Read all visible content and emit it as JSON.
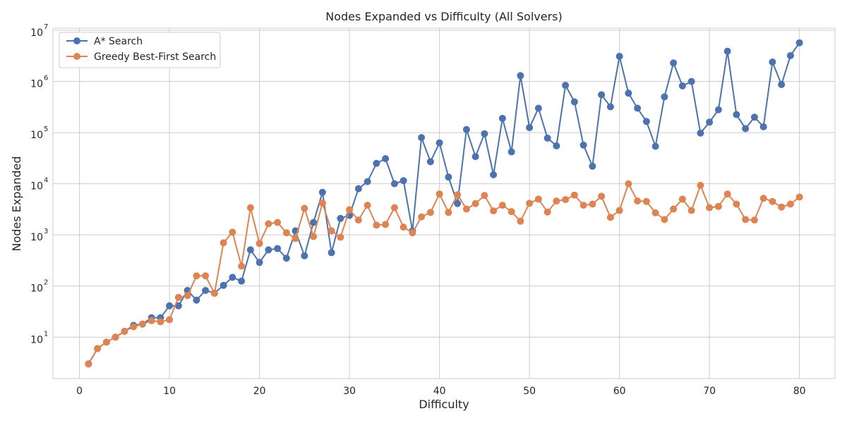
{
  "chart_data": {
    "type": "line",
    "title": "Nodes Expanded vs Difficulty (All Solvers)",
    "xlabel": "Difficulty",
    "ylabel": "Nodes Expanded",
    "xlim": [
      -2.95,
      83.95
    ],
    "ylim": [
      1.55,
      11000000
    ],
    "yscale": "log",
    "grid": true,
    "legend_position": "top-left",
    "x_ticks": [
      0,
      10,
      20,
      30,
      40,
      50,
      60,
      70,
      80
    ],
    "y_ticks": [
      {
        "value": 10,
        "base": "10",
        "exp": "1"
      },
      {
        "value": 100,
        "base": "10",
        "exp": "2"
      },
      {
        "value": 1000,
        "base": "10",
        "exp": "3"
      },
      {
        "value": 10000,
        "base": "10",
        "exp": "4"
      },
      {
        "value": 100000,
        "base": "10",
        "exp": "5"
      },
      {
        "value": 1000000,
        "base": "10",
        "exp": "6"
      },
      {
        "value": 10000000,
        "base": "10",
        "exp": "7"
      }
    ],
    "x": [
      1,
      2,
      3,
      4,
      5,
      6,
      7,
      8,
      9,
      10,
      11,
      12,
      13,
      14,
      15,
      16,
      17,
      18,
      19,
      20,
      21,
      22,
      23,
      24,
      25,
      26,
      27,
      28,
      29,
      30,
      31,
      32,
      33,
      34,
      35,
      36,
      37,
      38,
      39,
      40,
      41,
      42,
      43,
      44,
      45,
      46,
      47,
      48,
      49,
      50,
      51,
      52,
      53,
      54,
      55,
      56,
      57,
      58,
      59,
      60,
      61,
      62,
      63,
      64,
      65,
      66,
      67,
      68,
      69,
      70,
      71,
      72,
      73,
      74,
      75,
      76,
      77,
      78,
      79,
      80
    ],
    "series": [
      {
        "name": "A* Search",
        "color": "#4c72b0",
        "values": [
          3,
          6,
          8,
          10,
          13,
          17,
          18,
          24,
          24,
          41,
          41,
          82,
          53,
          82,
          73,
          103,
          148,
          125,
          510,
          290,
          510,
          540,
          350,
          1200,
          390,
          1750,
          6800,
          450,
          2100,
          2400,
          8000,
          11000,
          25000,
          31000,
          10000,
          11500,
          1200,
          80000,
          27000,
          63000,
          13500,
          4100,
          115000,
          34000,
          95000,
          15000,
          190000,
          42000,
          1300000,
          125000,
          300000,
          78000,
          55000,
          840000,
          400000,
          57000,
          22000,
          550000,
          320000,
          3100000,
          590000,
          300000,
          165000,
          54000,
          500000,
          2300000,
          820000,
          1000000,
          98000,
          160000,
          280000,
          3900000,
          225000,
          120000,
          200000,
          130000,
          2400000,
          870000,
          3200000,
          5700000
        ]
      },
      {
        "name": "Greedy Best-First Search",
        "color": "#dd8452",
        "values": [
          3,
          6,
          8,
          10,
          13,
          16,
          18,
          21,
          20,
          22,
          60,
          65,
          158,
          158,
          72,
          700,
          1130,
          245,
          3400,
          680,
          1650,
          1750,
          1100,
          850,
          3300,
          930,
          4200,
          1200,
          900,
          3100,
          1950,
          3800,
          1550,
          1600,
          3400,
          1420,
          1100,
          2250,
          2750,
          6300,
          2750,
          6100,
          3200,
          4100,
          5900,
          2950,
          3800,
          2850,
          1850,
          4150,
          5000,
          2800,
          4600,
          4900,
          6000,
          3800,
          4000,
          5700,
          2200,
          3000,
          10000,
          4600,
          4500,
          2700,
          2000,
          3200,
          5000,
          3000,
          9300,
          3400,
          3600,
          6300,
          4000,
          2000,
          1950,
          5200,
          4500,
          3500,
          4000,
          5500
        ]
      }
    ]
  }
}
